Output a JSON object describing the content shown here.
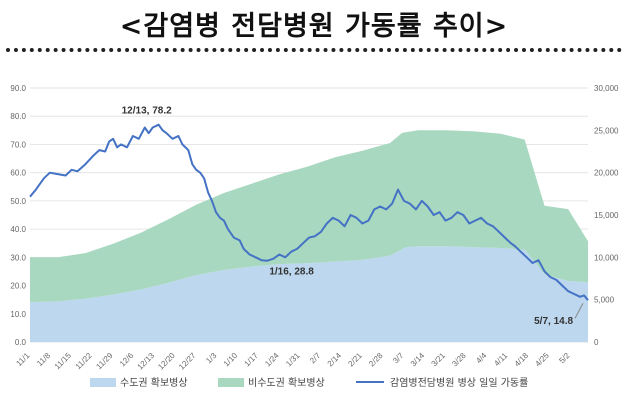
{
  "title": "<감염병 전담병원 가동률 추이>",
  "colors": {
    "capital": "#bdd7ee",
    "noncapital": "#a9d8c1",
    "line": "#4472c4",
    "grid": "#e6e6e6"
  },
  "chart_data": {
    "type": "area",
    "title": "<감염병 전담병원 가동률 추이>",
    "x_tick_labels": [
      "11/1",
      "11/8",
      "11/15",
      "11/22",
      "11/29",
      "12/6",
      "12/13",
      "12/20",
      "12/27",
      "1/3",
      "1/10",
      "1/17",
      "1/24",
      "1/31",
      "2/7",
      "2/14",
      "2/21",
      "2/28",
      "3/7",
      "3/14",
      "3/21",
      "3/28",
      "4/4",
      "4/11",
      "4/18",
      "4/25",
      "5/2"
    ],
    "ylim_left": [
      0,
      90
    ],
    "left_ticks": [
      "0.0",
      "10.0",
      "20.0",
      "30.0",
      "40.0",
      "50.0",
      "60.0",
      "70.0",
      "80.0",
      "90.0"
    ],
    "ylim_right": [
      0,
      30000
    ],
    "right_ticks": [
      "0",
      "5,000",
      "10,000",
      "15,000",
      "20,000",
      "25,000",
      "30,000"
    ],
    "grid": true,
    "legend_position": "bottom",
    "series": [
      {
        "name": "수도권 확보병상",
        "axis": "right",
        "kind": "stacked-area",
        "points": [
          [
            0,
            4700
          ],
          [
            14,
            4800
          ],
          [
            28,
            5100
          ],
          [
            42,
            5600
          ],
          [
            56,
            6200
          ],
          [
            70,
            7000
          ],
          [
            84,
            7900
          ],
          [
            98,
            8500
          ],
          [
            112,
            8900
          ],
          [
            126,
            9200
          ],
          [
            140,
            9300
          ],
          [
            154,
            9500
          ],
          [
            168,
            9700
          ],
          [
            182,
            10200
          ],
          [
            190,
            11200
          ],
          [
            196,
            11300
          ],
          [
            210,
            11300
          ],
          [
            224,
            11200
          ],
          [
            238,
            11100
          ],
          [
            250,
            10900
          ],
          [
            260,
            8000
          ],
          [
            272,
            7200
          ],
          [
            280,
            7100
          ],
          [
            282,
            7000
          ]
        ]
      },
      {
        "name": "비수도권 확보병상",
        "axis": "right",
        "kind": "stacked-area",
        "points": [
          [
            0,
            5300
          ],
          [
            14,
            5200
          ],
          [
            28,
            5400
          ],
          [
            42,
            6000
          ],
          [
            56,
            6700
          ],
          [
            70,
            7500
          ],
          [
            84,
            8300
          ],
          [
            98,
            9100
          ],
          [
            112,
            9800
          ],
          [
            126,
            10600
          ],
          [
            140,
            11400
          ],
          [
            154,
            12300
          ],
          [
            168,
            12900
          ],
          [
            182,
            13300
          ],
          [
            188,
            13500
          ],
          [
            196,
            13700
          ],
          [
            210,
            13700
          ],
          [
            224,
            13700
          ],
          [
            238,
            13500
          ],
          [
            250,
            13000
          ],
          [
            260,
            8100
          ],
          [
            272,
            8500
          ],
          [
            273,
            8200
          ],
          [
            282,
            4900
          ]
        ]
      },
      {
        "name": "감염병전담병원 병상 일일 가동률",
        "axis": "left",
        "kind": "line",
        "points": [
          [
            0,
            51.5
          ],
          [
            3,
            54
          ],
          [
            7,
            58
          ],
          [
            10,
            60
          ],
          [
            14,
            59.5
          ],
          [
            18,
            59
          ],
          [
            21,
            61
          ],
          [
            24,
            60.5
          ],
          [
            28,
            63
          ],
          [
            32,
            66
          ],
          [
            35,
            68
          ],
          [
            38,
            67.5
          ],
          [
            40,
            71
          ],
          [
            42,
            72
          ],
          [
            44,
            69
          ],
          [
            46,
            70
          ],
          [
            49,
            69
          ],
          [
            52,
            73
          ],
          [
            55,
            72
          ],
          [
            58,
            76
          ],
          [
            60,
            74
          ],
          [
            62,
            76
          ],
          [
            65,
            77
          ],
          [
            67,
            75
          ],
          [
            69,
            74
          ],
          [
            72,
            72
          ],
          [
            75,
            73
          ],
          [
            77,
            70
          ],
          [
            80,
            68
          ],
          [
            82,
            63
          ],
          [
            84,
            61
          ],
          [
            86,
            60
          ],
          [
            88,
            58
          ],
          [
            90,
            53
          ],
          [
            92,
            50
          ],
          [
            94,
            46
          ],
          [
            96,
            44
          ],
          [
            98,
            43
          ],
          [
            100,
            40
          ],
          [
            103,
            37
          ],
          [
            106,
            36
          ],
          [
            108,
            33
          ],
          [
            111,
            31
          ],
          [
            114,
            30
          ],
          [
            117,
            29
          ],
          [
            120,
            28.8
          ],
          [
            123,
            29.5
          ],
          [
            126,
            31
          ],
          [
            129,
            30
          ],
          [
            132,
            32
          ],
          [
            135,
            33
          ],
          [
            138,
            35
          ],
          [
            141,
            37
          ],
          [
            144,
            37.5
          ],
          [
            147,
            39
          ],
          [
            150,
            42
          ],
          [
            153,
            44
          ],
          [
            156,
            43
          ],
          [
            159,
            41
          ],
          [
            162,
            45
          ],
          [
            165,
            44
          ],
          [
            168,
            42
          ],
          [
            171,
            43
          ],
          [
            174,
            47
          ],
          [
            177,
            48
          ],
          [
            180,
            47
          ],
          [
            183,
            49
          ],
          [
            186,
            54
          ],
          [
            189,
            50
          ],
          [
            192,
            49
          ],
          [
            195,
            47
          ],
          [
            198,
            50
          ],
          [
            201,
            48
          ],
          [
            204,
            45
          ],
          [
            207,
            46
          ],
          [
            210,
            43
          ],
          [
            213,
            44
          ],
          [
            216,
            46
          ],
          [
            219,
            45
          ],
          [
            222,
            42
          ],
          [
            225,
            43
          ],
          [
            228,
            44
          ],
          [
            231,
            42
          ],
          [
            234,
            41
          ],
          [
            237,
            39
          ],
          [
            240,
            37
          ],
          [
            243,
            35
          ],
          [
            245,
            34
          ],
          [
            248,
            32
          ],
          [
            251,
            30
          ],
          [
            254,
            28
          ],
          [
            257,
            29
          ],
          [
            260,
            25
          ],
          [
            263,
            23
          ],
          [
            266,
            22
          ],
          [
            269,
            20
          ],
          [
            272,
            18
          ],
          [
            275,
            17
          ],
          [
            278,
            16
          ],
          [
            280,
            16.5
          ],
          [
            282,
            14.8
          ]
        ]
      }
    ],
    "annotations": [
      {
        "label": "12/13, 78.2",
        "day": 42,
        "value": 78.2
      },
      {
        "label": "1/16, 28.8",
        "day": 76,
        "value": 28.8
      },
      {
        "label": "5/7, 14.8",
        "day": 187,
        "value": 14.8
      }
    ]
  }
}
